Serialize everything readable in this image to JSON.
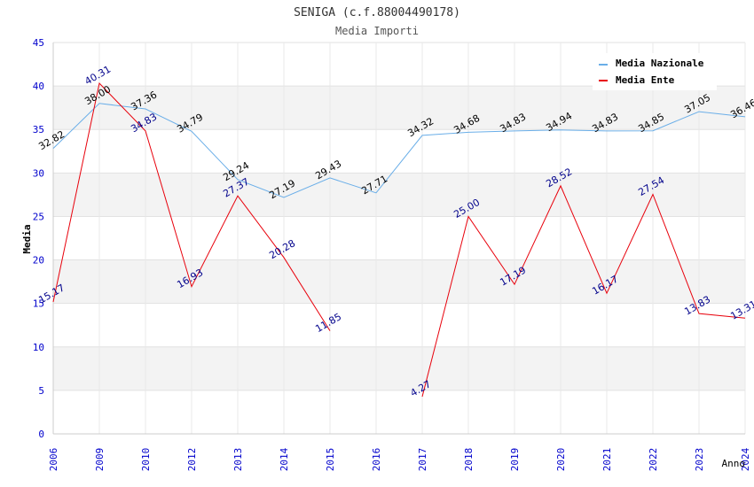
{
  "chart_data": {
    "type": "line",
    "title": "SENIGA (c.f.88004490178)",
    "subtitle": "Media Importi",
    "xlabel": "Anno",
    "ylabel": "Media",
    "ylim": [
      0,
      45
    ],
    "yticks": [
      "0",
      "5",
      "10",
      "15",
      "20",
      "25",
      "30",
      "35",
      "40",
      "45"
    ],
    "categories": [
      "2006",
      "2009",
      "2010",
      "2012",
      "2013",
      "2014",
      "2015",
      "2016",
      "2017",
      "2018",
      "2019",
      "2020",
      "2021",
      "2022",
      "2023",
      "2024"
    ],
    "grid": true,
    "legend_position": "top-right",
    "series": [
      {
        "name": "Media Nazionale",
        "color": "#6aaee8",
        "label_color": "#000000",
        "values": [
          32.82,
          38.0,
          37.36,
          34.79,
          29.24,
          27.19,
          29.43,
          27.71,
          34.32,
          34.68,
          34.83,
          34.94,
          34.83,
          34.85,
          37.05,
          36.46
        ],
        "labels": [
          "32.82",
          "38.00",
          "37.36",
          "34.79",
          "29.24",
          "27.19",
          "29.43",
          "27.71",
          "34.32",
          "34.68",
          "34.83",
          "34.94",
          "34.83",
          "34.85",
          "37.05",
          "36.46"
        ]
      },
      {
        "name": "Media Ente",
        "color": "#e8000b",
        "label_color": "#00008b",
        "values": [
          15.17,
          40.31,
          34.83,
          16.93,
          27.37,
          20.28,
          11.85,
          null,
          4.27,
          25.0,
          17.19,
          28.52,
          16.17,
          27.54,
          13.83,
          13.31
        ],
        "labels": [
          "15.17",
          "40.31",
          "34.83",
          "16.93",
          "27.37",
          "20.28",
          "11.85",
          null,
          "4.27",
          "25.00",
          "17.19",
          "28.52",
          "16.17",
          "27.54",
          "13.83",
          "13.31"
        ]
      }
    ]
  }
}
